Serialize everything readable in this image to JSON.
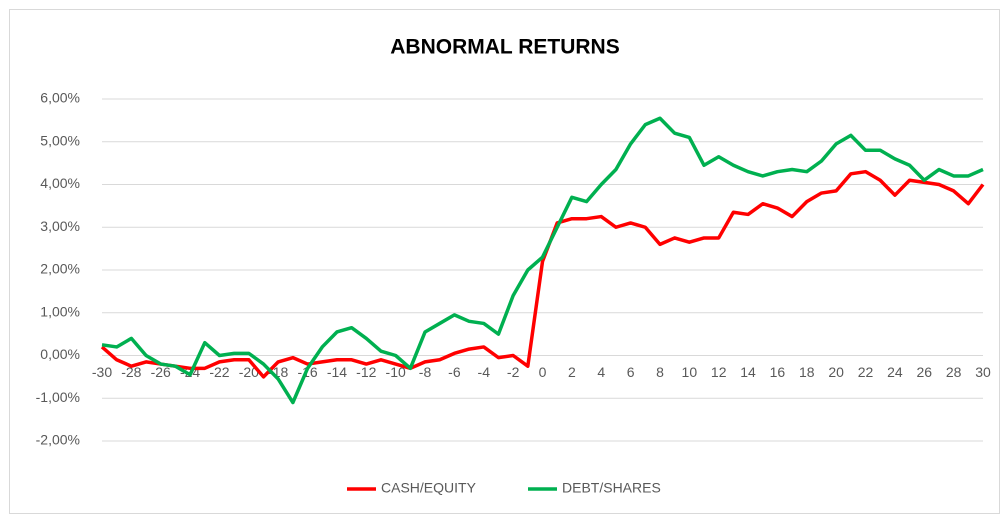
{
  "chart_data": {
    "type": "line",
    "title": "ABNORMAL RETURNS",
    "x": [
      -30,
      -29,
      -28,
      -27,
      -26,
      -25,
      -24,
      -23,
      -22,
      -21,
      -20,
      -19,
      -18,
      -17,
      -16,
      -15,
      -14,
      -13,
      -12,
      -11,
      -10,
      -9,
      -8,
      -7,
      -6,
      -5,
      -4,
      -3,
      -2,
      -1,
      0,
      1,
      2,
      3,
      4,
      5,
      6,
      7,
      8,
      9,
      10,
      11,
      12,
      13,
      14,
      15,
      16,
      17,
      18,
      19,
      20,
      21,
      22,
      23,
      24,
      25,
      26,
      27,
      28,
      29,
      30
    ],
    "series": [
      {
        "name": "CASH/EQUITY",
        "color": "#ff0000",
        "values": [
          0.2,
          -0.1,
          -0.25,
          -0.15,
          -0.2,
          -0.25,
          -0.3,
          -0.3,
          -0.15,
          -0.1,
          -0.1,
          -0.5,
          -0.15,
          -0.05,
          -0.2,
          -0.15,
          -0.1,
          -0.1,
          -0.2,
          -0.1,
          -0.2,
          -0.3,
          -0.15,
          -0.1,
          0.05,
          0.15,
          0.2,
          -0.05,
          0.0,
          -0.25,
          2.2,
          3.1,
          3.2,
          3.2,
          3.25,
          3.0,
          3.1,
          3.0,
          2.6,
          2.75,
          2.65,
          2.75,
          2.75,
          3.35,
          3.3,
          3.55,
          3.45,
          3.25,
          3.6,
          3.8,
          3.85,
          4.25,
          4.3,
          4.1,
          3.75,
          4.1,
          4.05,
          4.0,
          3.85,
          3.55,
          4.0
        ]
      },
      {
        "name": "DEBT/SHARES",
        "color": "#00b050",
        "values": [
          0.25,
          0.2,
          0.4,
          0.0,
          -0.2,
          -0.25,
          -0.45,
          0.3,
          0.0,
          0.05,
          0.05,
          -0.2,
          -0.55,
          -1.1,
          -0.3,
          0.2,
          0.55,
          0.65,
          0.4,
          0.1,
          0.0,
          -0.3,
          0.55,
          0.75,
          0.95,
          0.8,
          0.75,
          0.5,
          1.4,
          2.0,
          2.3,
          3.0,
          3.7,
          3.6,
          4.0,
          4.35,
          4.95,
          5.4,
          5.55,
          5.2,
          5.1,
          4.45,
          4.65,
          4.45,
          4.3,
          4.2,
          4.3,
          4.35,
          4.3,
          4.55,
          4.95,
          5.15,
          4.8,
          4.8,
          4.6,
          4.45,
          4.1,
          4.35,
          4.2,
          4.2,
          4.35
        ]
      }
    ],
    "xlim": [
      -30,
      30
    ],
    "xticks": [
      -30,
      -28,
      -26,
      -24,
      -22,
      -20,
      -18,
      -16,
      -14,
      -12,
      -10,
      -8,
      -6,
      -4,
      -2,
      0,
      2,
      4,
      6,
      8,
      10,
      12,
      14,
      16,
      18,
      20,
      22,
      24,
      26,
      28,
      30
    ],
    "ylim": [
      -2,
      6
    ],
    "yticks": [
      {
        "value": -2,
        "label": "-2,00%"
      },
      {
        "value": -1,
        "label": "-1,00%"
      },
      {
        "value": 0,
        "label": "0,00%"
      },
      {
        "value": 1,
        "label": "1,00%"
      },
      {
        "value": 2,
        "label": "2,00%"
      },
      {
        "value": 3,
        "label": "3,00%"
      },
      {
        "value": 4,
        "label": "4,00%"
      },
      {
        "value": 5,
        "label": "5,00%"
      },
      {
        "value": 6,
        "label": "6,00%"
      }
    ],
    "grid": true,
    "legend": "bottom"
  }
}
